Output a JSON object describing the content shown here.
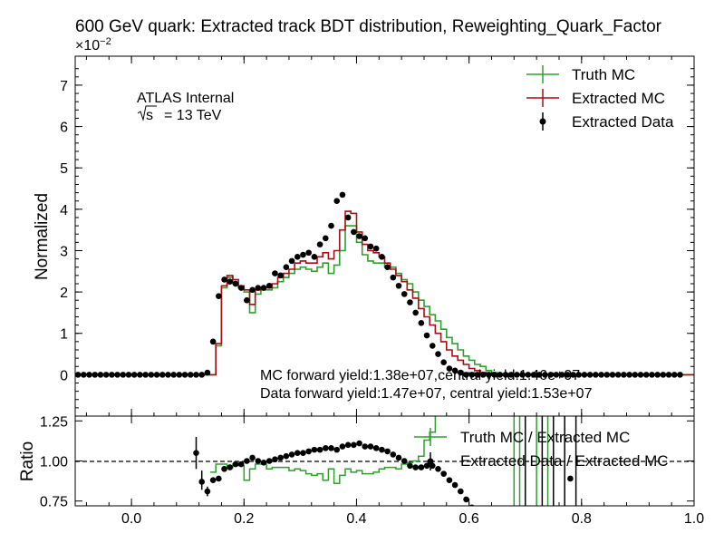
{
  "chart_data": [
    {
      "type": "line",
      "panel": "main",
      "title": "600 GeV quark: Extracted track BDT distribution, Reweighting_Quark_Factor",
      "axis_multiplier": "×10",
      "axis_multiplier_exp": "−2",
      "ylabel": "Normalized",
      "xlim": [
        -0.1,
        1.0
      ],
      "ylim": [
        -1.0,
        7.7
      ],
      "yticks": [
        0,
        1,
        2,
        3,
        4,
        5,
        6,
        7
      ],
      "ytick_labels": [
        "0",
        "1",
        "2",
        "3",
        "4",
        "5",
        "6",
        "7"
      ],
      "tick_unit_note_value": 0.01,
      "legend_position": "top-right",
      "legend": [
        "Truth MC",
        "Extracted MC",
        "Extracted Data"
      ],
      "annotations": {
        "atlas": "ATLAS Internal",
        "energy_sqrt": "√s",
        "energy_value": "= 13 TeV",
        "mc_yield": "MC forward yield:1.38e+07,central yield:1.46e+07",
        "data_yield": "Data forward yield:1.47e+07, central yield:1.53e+07"
      },
      "bin_edges_start": -0.1,
      "bin_width": 0.01,
      "series": [
        {
          "name": "Truth MC",
          "style": "step",
          "color": "#2ca02c",
          "values": [
            0,
            0,
            0,
            0,
            0,
            0,
            0,
            0,
            0,
            0,
            0,
            0,
            0,
            0,
            0,
            0,
            0,
            0,
            0,
            0,
            0,
            0,
            0,
            0,
            0,
            0.7,
            2.1,
            2.35,
            2.2,
            2.1,
            2.0,
            1.5,
            1.95,
            2.05,
            2.05,
            2.1,
            2.25,
            2.35,
            2.45,
            2.55,
            2.6,
            2.55,
            2.5,
            2.6,
            2.7,
            2.45,
            2.65,
            3.0,
            3.6,
            3.6,
            3.2,
            2.9,
            2.75,
            2.7,
            2.7,
            2.6,
            2.6,
            2.45,
            2.3,
            2.2,
            2.0,
            1.8,
            1.65,
            1.45,
            1.3,
            1.1,
            0.9,
            0.75,
            0.6,
            0.45,
            0.35,
            0.25,
            0.2,
            0.1,
            0.05,
            0.02,
            0,
            0,
            0,
            0,
            0,
            0,
            0,
            0,
            0,
            0,
            0,
            0,
            0,
            0,
            0,
            0,
            0,
            0,
            0,
            0,
            0,
            0,
            0,
            0,
            0,
            0,
            0,
            0,
            0,
            0,
            0,
            0,
            0,
            0
          ]
        },
        {
          "name": "Extracted MC",
          "style": "step",
          "color": "#a50f15",
          "values": [
            0,
            0,
            0,
            0,
            0,
            0,
            0,
            0,
            0,
            0,
            0,
            0,
            0,
            0,
            0,
            0,
            0,
            0,
            0,
            0,
            0,
            0,
            0,
            0,
            0,
            0.75,
            2.15,
            2.4,
            2.3,
            2.15,
            2.05,
            1.7,
            2.05,
            2.1,
            2.1,
            2.2,
            2.35,
            2.45,
            2.55,
            2.7,
            2.75,
            2.7,
            2.7,
            2.85,
            2.95,
            2.8,
            3.0,
            3.5,
            3.95,
            3.9,
            3.45,
            3.15,
            3.0,
            2.95,
            2.85,
            2.7,
            2.55,
            2.4,
            2.25,
            2.05,
            1.85,
            1.6,
            1.4,
            1.2,
            1.0,
            0.8,
            0.6,
            0.45,
            0.35,
            0.25,
            0.15,
            0.1,
            0.05,
            0.02,
            0,
            0,
            0,
            0,
            0,
            0,
            0,
            0,
            0,
            0,
            0,
            0,
            0,
            0,
            0,
            0,
            0,
            0,
            0,
            0,
            0,
            0,
            0,
            0,
            0,
            0,
            0,
            0,
            0,
            0,
            0,
            0,
            0,
            0,
            0,
            0
          ]
        },
        {
          "name": "Extracted Data",
          "style": "points",
          "color": "#000000",
          "values": [
            0,
            0,
            0,
            0,
            0,
            0,
            0,
            0,
            0,
            0,
            0,
            0,
            0,
            0,
            0,
            0,
            0,
            0,
            0,
            0,
            0,
            0,
            0,
            0.05,
            0.8,
            1.9,
            2.3,
            2.25,
            2.2,
            2.1,
            1.8,
            2.05,
            2.1,
            2.1,
            2.15,
            2.45,
            2.4,
            2.6,
            2.75,
            2.85,
            2.9,
            2.95,
            2.85,
            3.15,
            3.3,
            3.6,
            4.2,
            4.35,
            3.8,
            3.45,
            3.35,
            3.3,
            3.1,
            3.05,
            2.85,
            2.6,
            2.35,
            2.15,
            1.95,
            1.75,
            1.5,
            1.25,
            0.95,
            0.7,
            0.5,
            0.3,
            0.15,
            0.1,
            0.05,
            0,
            0,
            0,
            0,
            0,
            0,
            0,
            0,
            0,
            0,
            0,
            0,
            0,
            0,
            0,
            0,
            0,
            0,
            0,
            0,
            0,
            0,
            0,
            0,
            0,
            0,
            0,
            0,
            0,
            0,
            0,
            0,
            0,
            0,
            0,
            0,
            0,
            0,
            0
          ]
        }
      ]
    },
    {
      "type": "line",
      "panel": "ratio",
      "ylabel": "Ratio",
      "xlim": [
        -0.1,
        1.0
      ],
      "ylim": [
        0.72,
        1.28
      ],
      "yticks": [
        0.75,
        1.0,
        1.25
      ],
      "ytick_labels": [
        "0.75",
        "1.00",
        "1.25"
      ],
      "xticks": [
        0.0,
        0.2,
        0.4,
        0.6,
        0.8,
        1.0
      ],
      "xtick_labels": [
        "0.0",
        "0.2",
        "0.4",
        "0.6",
        "0.8",
        "1.0"
      ],
      "reference_line": 1.0,
      "legend_position": "top-right",
      "legend": [
        "Truth MC / Extracted MC",
        "Extracted Data / Extracted MC"
      ],
      "series": [
        {
          "name": "Truth MC / Extracted MC",
          "style": "step",
          "color": "#2ca02c",
          "x_start": 0.14,
          "values": [
            0.93,
            0.98,
            0.98,
            0.96,
            0.98,
            0.97,
            0.88,
            0.95,
            0.98,
            0.98,
            0.95,
            0.96,
            0.96,
            0.96,
            0.94,
            0.95,
            0.94,
            0.92,
            0.91,
            0.92,
            0.88,
            0.95,
            0.86,
            0.91,
            0.95,
            0.93,
            0.94,
            0.92,
            0.92,
            0.93,
            0.95,
            0.96,
            0.96,
            0.95,
            0.98,
            0.99,
            1.0,
            1.03,
            1.13,
            1.18,
            1.32,
            1.5
          ]
        },
        {
          "name": "Extracted Data / Extracted MC",
          "style": "points",
          "color": "#000000",
          "points": [
            [
              0.115,
              1.05
            ],
            [
              0.125,
              0.87
            ],
            [
              0.135,
              0.81
            ],
            [
              0.145,
              0.88
            ],
            [
              0.155,
              0.89
            ],
            [
              0.165,
              0.95
            ],
            [
              0.175,
              0.96
            ],
            [
              0.185,
              0.98
            ],
            [
              0.195,
              0.98
            ],
            [
              0.205,
              1.0
            ],
            [
              0.215,
              1.02
            ],
            [
              0.225,
              1.0
            ],
            [
              0.235,
              0.99
            ],
            [
              0.245,
              1.0
            ],
            [
              0.255,
              1.01
            ],
            [
              0.265,
              1.02
            ],
            [
              0.275,
              1.03
            ],
            [
              0.285,
              1.04
            ],
            [
              0.295,
              1.05
            ],
            [
              0.305,
              1.05
            ],
            [
              0.315,
              1.06
            ],
            [
              0.325,
              1.07
            ],
            [
              0.335,
              1.07
            ],
            [
              0.345,
              1.08
            ],
            [
              0.355,
              1.08
            ],
            [
              0.365,
              1.07
            ],
            [
              0.375,
              1.09
            ],
            [
              0.385,
              1.1
            ],
            [
              0.395,
              1.1
            ],
            [
              0.405,
              1.11
            ],
            [
              0.415,
              1.09
            ],
            [
              0.425,
              1.09
            ],
            [
              0.435,
              1.08
            ],
            [
              0.445,
              1.07
            ],
            [
              0.455,
              1.06
            ],
            [
              0.465,
              1.04
            ],
            [
              0.475,
              1.02
            ],
            [
              0.485,
              1.0
            ],
            [
              0.495,
              0.97
            ],
            [
              0.505,
              0.96
            ],
            [
              0.515,
              0.96
            ],
            [
              0.525,
              0.97
            ],
            [
              0.535,
              0.97
            ],
            [
              0.545,
              0.95
            ],
            [
              0.555,
              0.92
            ],
            [
              0.565,
              0.88
            ],
            [
              0.575,
              0.85
            ],
            [
              0.585,
              0.81
            ],
            [
              0.595,
              0.76
            ],
            [
              0.605,
              0.71
            ],
            [
              0.78,
              0.89
            ]
          ],
          "error_bars": [
            [
              0.115,
              0.95,
              1.15
            ],
            [
              0.125,
              0.82,
              0.94
            ],
            [
              0.135,
              0.78,
              0.84
            ]
          ]
        }
      ]
    }
  ]
}
